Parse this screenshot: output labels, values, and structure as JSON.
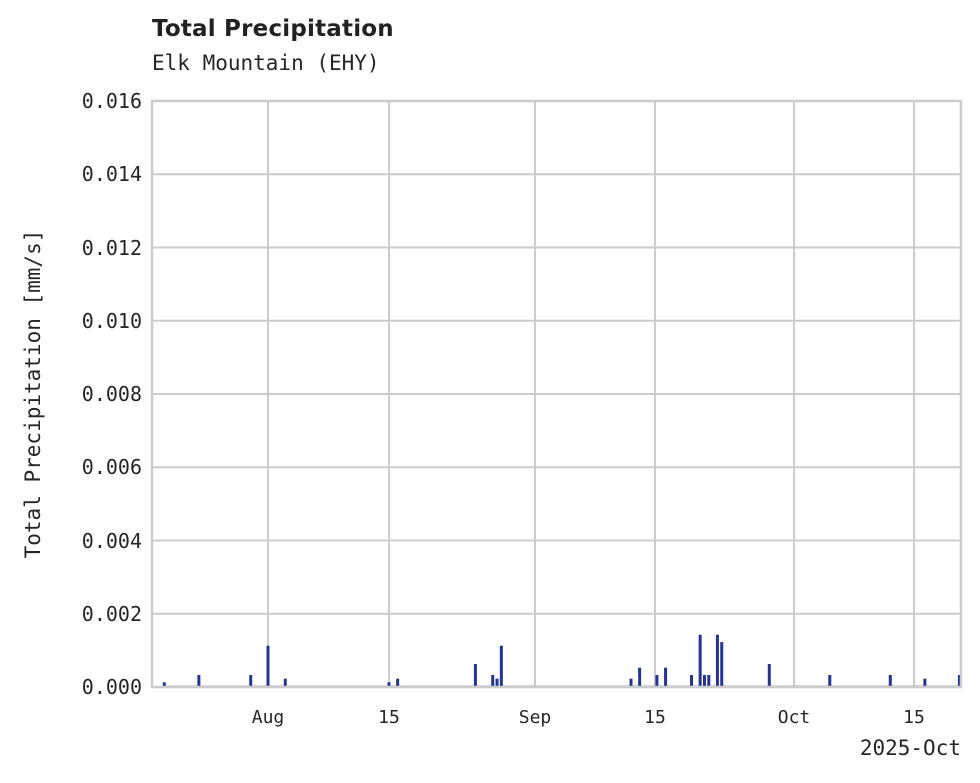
{
  "chart": {
    "title": "Total Precipitation",
    "subtitle": "Elk Mountain (EHY)",
    "ylabel": "Total Precipitation [mm/s]",
    "xoffset_label": "2025-Oct",
    "yticks": [
      "0.000",
      "0.002",
      "0.004",
      "0.006",
      "0.008",
      "0.010",
      "0.012",
      "0.014",
      "0.016"
    ],
    "xticks": [
      "Aug",
      "15",
      "Sep",
      "15",
      "Oct",
      "15"
    ],
    "colors": {
      "series": "#253494",
      "grid": "#cccccc",
      "frame": "#cccccc",
      "text": "#262626"
    }
  },
  "chart_data": {
    "type": "bar",
    "title": "Total Precipitation",
    "subtitle": "Elk Mountain (EHY)",
    "xlabel": "",
    "ylabel": "Total Precipitation [mm/s]",
    "ylim": [
      0,
      0.016
    ],
    "xlim": [
      "2025-07-18",
      "2025-10-20"
    ],
    "grid": true,
    "legend": null,
    "x_tick_labels": [
      "Aug",
      "15",
      "Sep",
      "15",
      "Oct",
      "15"
    ],
    "x_offset_label": "2025-Oct",
    "y_tick_labels": [
      "0.000",
      "0.002",
      "0.004",
      "0.006",
      "0.008",
      "0.010",
      "0.012",
      "0.014",
      "0.016"
    ],
    "series": [
      {
        "name": "Total Precipitation",
        "color": "#253494",
        "x": [
          "2025-07-20",
          "2025-07-24",
          "2025-07-30",
          "2025-08-01",
          "2025-08-03",
          "2025-08-15",
          "2025-08-16",
          "2025-08-25",
          "2025-08-27",
          "2025-08-27T12",
          "2025-08-28",
          "2025-09-12",
          "2025-09-13",
          "2025-09-15",
          "2025-09-16",
          "2025-09-19",
          "2025-09-20",
          "2025-09-20T12",
          "2025-09-21",
          "2025-09-22",
          "2025-09-22T12",
          "2025-09-28",
          "2025-10-05",
          "2025-10-12",
          "2025-10-16",
          "2025-10-20"
        ],
        "values": [
          0.0001,
          0.0003,
          0.0003,
          0.0011,
          0.0002,
          0.0001,
          0.0002,
          0.0006,
          0.0003,
          0.0002,
          0.0011,
          0.0002,
          0.0005,
          0.0003,
          0.0005,
          0.0003,
          0.0014,
          0.0003,
          0.0003,
          0.0014,
          0.0012,
          0.0006,
          0.0003,
          0.0003,
          0.0002,
          0.0003
        ]
      }
    ]
  }
}
